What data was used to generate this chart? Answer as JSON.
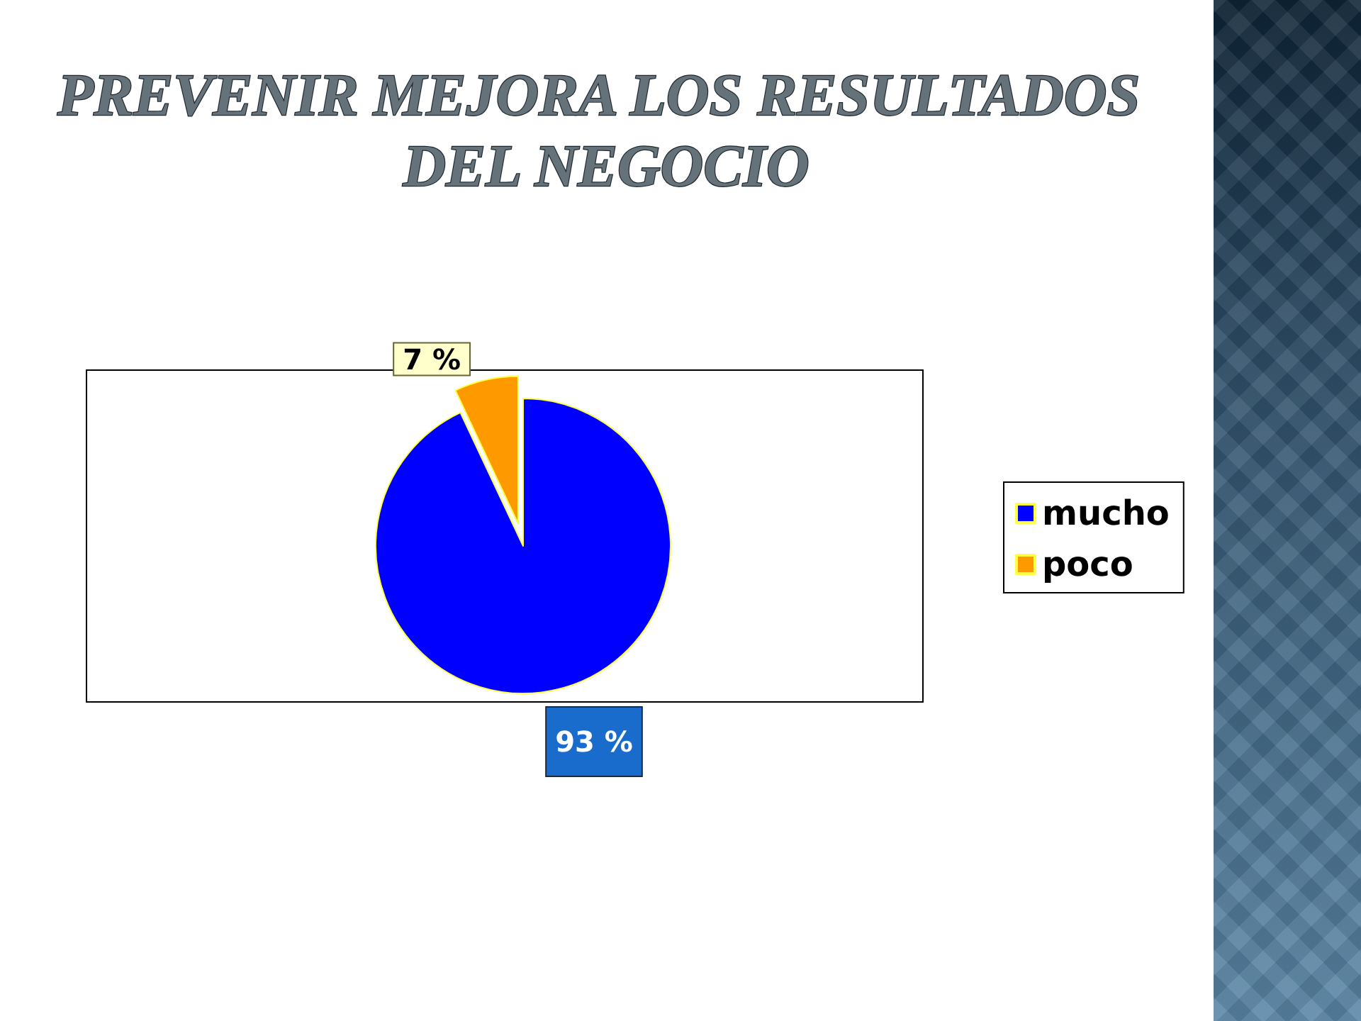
{
  "chart_data": {
    "type": "pie",
    "title": "PREVENIR MEJORA LOS RESULTADOS DEL NEGOCIO",
    "categories": [
      "mucho",
      "poco"
    ],
    "values": [
      93,
      7
    ],
    "colors": [
      "#0000ff",
      "#ff9900"
    ],
    "value_labels": [
      "93 %",
      "7 %"
    ],
    "legend": "right"
  }
}
